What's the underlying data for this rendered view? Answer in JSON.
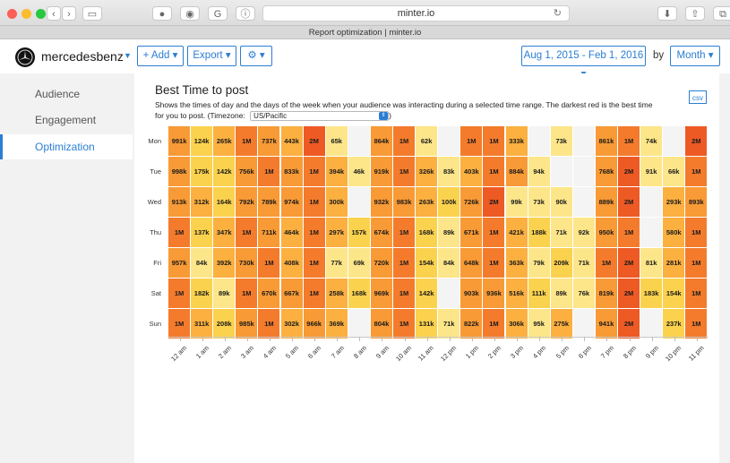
{
  "browser": {
    "url": "minter.io",
    "tab_title": "Report optimization | minter.io"
  },
  "header": {
    "account": "mercedesbenz",
    "add_label": "+ Add ▾",
    "export_label": "Export ▾",
    "settings_label": "⚙ ▾",
    "date_range": "Aug 1, 2015 - Feb 1, 2016 ▾",
    "by_label": "by",
    "period": "Month ▾"
  },
  "sidebar": {
    "items": [
      {
        "label": "Audience",
        "active": false
      },
      {
        "label": "Engagement",
        "active": false
      },
      {
        "label": "Optimization",
        "active": true
      }
    ]
  },
  "main": {
    "title": "Best Time to post",
    "description": "Shows the times of day and the days of the week when your audience was interacting during a selected time range. The darkest red is the best time for you to post. (Timezone:",
    "description_end": ")",
    "timezone": "US/Pacific",
    "csv_label": "csv"
  },
  "chart_data": {
    "type": "heatmap",
    "title": "Best Time to post",
    "days": [
      "Mon",
      "Tue",
      "Wed",
      "Thu",
      "Fri",
      "Sat",
      "Sun"
    ],
    "hours": [
      "12 am",
      "1 am",
      "2 am",
      "3 am",
      "4 am",
      "5 am",
      "6 am",
      "7 am",
      "8 am",
      "9 am",
      "10 am",
      "11 am",
      "12 pm",
      "1 pm",
      "2 pm",
      "3 pm",
      "4 pm",
      "5 pm",
      "6 pm",
      "7 pm",
      "8 pm",
      "9 pm",
      "10 pm",
      "11 pm"
    ],
    "values": [
      [
        "991k",
        "124k",
        "265k",
        "1M",
        "737k",
        "443k",
        "2M",
        "65k",
        "",
        "864k",
        "1M",
        "62k",
        "",
        "1M",
        "1M",
        "333k",
        "",
        "73k",
        "",
        "861k",
        "1M",
        "74k",
        "",
        "2M"
      ],
      [
        "998k",
        "175k",
        "142k",
        "756k",
        "1M",
        "833k",
        "1M",
        "394k",
        "46k",
        "919k",
        "1M",
        "326k",
        "83k",
        "403k",
        "1M",
        "884k",
        "94k",
        "",
        "",
        "768k",
        "2M",
        "91k",
        "66k",
        "1M"
      ],
      [
        "913k",
        "312k",
        "164k",
        "792k",
        "789k",
        "974k",
        "1M",
        "300k",
        "",
        "932k",
        "983k",
        "263k",
        "100k",
        "726k",
        "2M",
        "99k",
        "73k",
        "90k",
        "",
        "889k",
        "2M",
        "",
        "293k",
        "893k"
      ],
      [
        "1M",
        "137k",
        "347k",
        "1M",
        "711k",
        "464k",
        "1M",
        "297k",
        "157k",
        "674k",
        "1M",
        "168k",
        "89k",
        "671k",
        "1M",
        "421k",
        "188k",
        "71k",
        "92k",
        "950k",
        "1M",
        "",
        "580k",
        "1M"
      ],
      [
        "957k",
        "84k",
        "392k",
        "730k",
        "1M",
        "408k",
        "1M",
        "77k",
        "69k",
        "720k",
        "1M",
        "154k",
        "84k",
        "648k",
        "1M",
        "363k",
        "79k",
        "209k",
        "71k",
        "1M",
        "2M",
        "81k",
        "281k",
        "1M"
      ],
      [
        "1M",
        "182k",
        "89k",
        "1M",
        "670k",
        "667k",
        "1M",
        "258k",
        "168k",
        "969k",
        "1M",
        "142k",
        "",
        "903k",
        "936k",
        "516k",
        "111k",
        "89k",
        "76k",
        "819k",
        "2M",
        "183k",
        "154k",
        "1M"
      ],
      [
        "1M",
        "311k",
        "208k",
        "985k",
        "1M",
        "302k",
        "966k",
        "369k",
        "",
        "804k",
        "1M",
        "131k",
        "71k",
        "822k",
        "1M",
        "306k",
        "95k",
        "275k",
        "",
        "941k",
        "2M",
        "",
        "237k",
        "1M"
      ]
    ],
    "color_scale": [
      "#fde68a",
      "#fbd24e",
      "#fbb040",
      "#f89a35",
      "#f47b2c",
      "#ee5a24"
    ]
  }
}
